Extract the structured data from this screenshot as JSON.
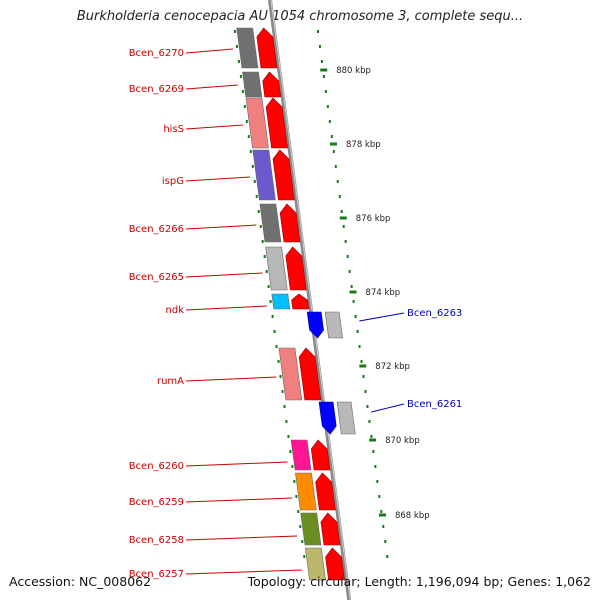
{
  "title": "Burkholderia cenocepacia AU 1054 chromosome 3, complete sequ...",
  "footer": {
    "accession": "Accession: NC_008062",
    "topology": "Topology: circular; Length: 1,196,094 bp; Genes: 1,062"
  },
  "colors": {
    "forward_label": "#cc0000",
    "reverse_label": "#0000bb",
    "forward_arrow": "#ff0000",
    "reverse_arrow": "#0000ff",
    "backbone": "#888888",
    "tick": "#1a7a1a"
  },
  "forward_genes": [
    {
      "label": "Bcen_6270",
      "color": "#707070"
    },
    {
      "label": "Bcen_6269",
      "color": "#707070"
    },
    {
      "label": "hisS",
      "color": "#f08080"
    },
    {
      "label": "ispG",
      "color": "#6a5acd"
    },
    {
      "label": "Bcen_6266",
      "color": "#707070"
    },
    {
      "label": "Bcen_6265",
      "color": "#b8b8b8"
    },
    {
      "label": "ndk",
      "color": "#00bfff"
    },
    {
      "label": "rumA",
      "color": "#f08080"
    },
    {
      "label": "Bcen_6260",
      "color": "#ff1493"
    },
    {
      "label": "Bcen_6259",
      "color": "#ff8c00"
    },
    {
      "label": "Bcen_6258",
      "color": "#6b8e23"
    },
    {
      "label": "Bcen_6257",
      "color": "#bdb76b"
    }
  ],
  "reverse_genes": [
    {
      "label": "Bcen_6263",
      "color": "#b8b8b8"
    },
    {
      "label": "Bcen_6261",
      "color": "#b8b8b8"
    }
  ],
  "ruler_labels": [
    "880 kbp",
    "878 kbp",
    "876 kbp",
    "874 kbp",
    "872 kbp",
    "870 kbp",
    "868 kbp"
  ]
}
